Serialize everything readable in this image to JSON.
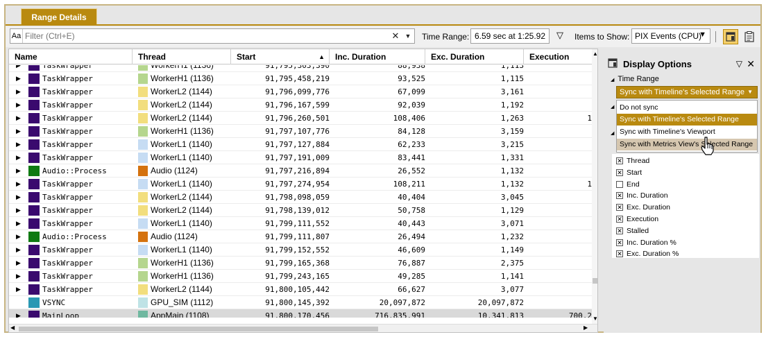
{
  "tab": {
    "label": "Range Details"
  },
  "toolbar": {
    "aa_label": "Aa",
    "filter_placeholder": "Filter (Ctrl+E)",
    "time_range_label": "Time Range:",
    "time_range_value": "6.59 sec at 1:25.92",
    "items_label": "Items to Show:",
    "items_value": "PIX Events (CPU)"
  },
  "grid": {
    "columns": [
      "Name",
      "Thread",
      "Start",
      "Inc. Duration",
      "Exc. Duration",
      "Execution"
    ],
    "rows": [
      {
        "name": "TaskWrapper",
        "name_color": "#3a0a6e",
        "thread": "WorkerH1 (1136)",
        "thread_color": "#b5d68e",
        "start": "91,795,303,390",
        "inc": "88,938",
        "exc": "1,113",
        "exe": ""
      },
      {
        "name": "TaskWrapper",
        "name_color": "#3a0a6e",
        "thread": "WorkerH1 (1136)",
        "thread_color": "#b5d68e",
        "start": "91,795,458,219",
        "inc": "93,525",
        "exc": "1,115",
        "exe": ""
      },
      {
        "name": "TaskWrapper",
        "name_color": "#3a0a6e",
        "thread": "WorkerL2 (1144)",
        "thread_color": "#f2de7e",
        "start": "91,796,099,776",
        "inc": "67,099",
        "exc": "3,161",
        "exe": ""
      },
      {
        "name": "TaskWrapper",
        "name_color": "#3a0a6e",
        "thread": "WorkerL2 (1144)",
        "thread_color": "#f2de7e",
        "start": "91,796,167,599",
        "inc": "92,039",
        "exc": "1,192",
        "exe": ""
      },
      {
        "name": "TaskWrapper",
        "name_color": "#3a0a6e",
        "thread": "WorkerL2 (1144)",
        "thread_color": "#f2de7e",
        "start": "91,796,260,501",
        "inc": "108,406",
        "exc": "1,263",
        "exe": "1"
      },
      {
        "name": "TaskWrapper",
        "name_color": "#3a0a6e",
        "thread": "WorkerH1 (1136)",
        "thread_color": "#b5d68e",
        "start": "91,797,107,776",
        "inc": "84,128",
        "exc": "3,159",
        "exe": ""
      },
      {
        "name": "TaskWrapper",
        "name_color": "#3a0a6e",
        "thread": "WorkerL1 (1140)",
        "thread_color": "#c6dcf3",
        "start": "91,797,127,884",
        "inc": "62,233",
        "exc": "3,215",
        "exe": ""
      },
      {
        "name": "TaskWrapper",
        "name_color": "#3a0a6e",
        "thread": "WorkerL1 (1140)",
        "thread_color": "#c6dcf3",
        "start": "91,797,191,009",
        "inc": "83,441",
        "exc": "1,331",
        "exe": ""
      },
      {
        "name": "Audio::Process",
        "name_color": "#0f7a12",
        "thread": "Audio (1124)",
        "thread_color": "#d4720f",
        "start": "91,797,216,894",
        "inc": "26,552",
        "exc": "1,132",
        "exe": ""
      },
      {
        "name": "TaskWrapper",
        "name_color": "#3a0a6e",
        "thread": "WorkerL1 (1140)",
        "thread_color": "#c6dcf3",
        "start": "91,797,274,954",
        "inc": "108,211",
        "exc": "1,132",
        "exe": "1"
      },
      {
        "name": "TaskWrapper",
        "name_color": "#3a0a6e",
        "thread": "WorkerL2 (1144)",
        "thread_color": "#f2de7e",
        "start": "91,798,098,059",
        "inc": "40,404",
        "exc": "3,045",
        "exe": ""
      },
      {
        "name": "TaskWrapper",
        "name_color": "#3a0a6e",
        "thread": "WorkerL2 (1144)",
        "thread_color": "#f2de7e",
        "start": "91,798,139,012",
        "inc": "50,758",
        "exc": "1,129",
        "exe": ""
      },
      {
        "name": "TaskWrapper",
        "name_color": "#3a0a6e",
        "thread": "WorkerL1 (1140)",
        "thread_color": "#c6dcf3",
        "start": "91,799,111,552",
        "inc": "40,443",
        "exc": "3,071",
        "exe": ""
      },
      {
        "name": "Audio::Process",
        "name_color": "#0f7a12",
        "thread": "Audio (1124)",
        "thread_color": "#d4720f",
        "start": "91,799,111,807",
        "inc": "26,494",
        "exc": "1,232",
        "exe": ""
      },
      {
        "name": "TaskWrapper",
        "name_color": "#3a0a6e",
        "thread": "WorkerL1 (1140)",
        "thread_color": "#c6dcf3",
        "start": "91,799,152,552",
        "inc": "46,609",
        "exc": "1,149",
        "exe": ""
      },
      {
        "name": "TaskWrapper",
        "name_color": "#3a0a6e",
        "thread": "WorkerH1 (1136)",
        "thread_color": "#b5d68e",
        "start": "91,799,165,368",
        "inc": "76,887",
        "exc": "2,375",
        "exe": ""
      },
      {
        "name": "TaskWrapper",
        "name_color": "#3a0a6e",
        "thread": "WorkerH1 (1136)",
        "thread_color": "#b5d68e",
        "start": "91,799,243,165",
        "inc": "49,285",
        "exc": "1,141",
        "exe": ""
      },
      {
        "name": "TaskWrapper",
        "name_color": "#3a0a6e",
        "thread": "WorkerL2 (1144)",
        "thread_color": "#f2de7e",
        "start": "91,800,105,442",
        "inc": "66,627",
        "exc": "3,077",
        "exe": ""
      },
      {
        "name": "VSYNC",
        "name_color": "#2a98b3",
        "thread": "GPU_SIM (1112)",
        "thread_color": "#bfe3e6",
        "start": "91,800,145,392",
        "inc": "20,097,872",
        "exc": "20,097,872",
        "exe": "",
        "noexpand": true
      },
      {
        "name": "MainLoop",
        "name_color": "#3a0a6e",
        "thread": "AppMain (1108)",
        "thread_color": "#6fb8a0",
        "start": "91,800,170,456",
        "inc": "716,835,991",
        "exc": "10,341,813",
        "exe": "700,2",
        "selected": true
      }
    ]
  },
  "panel": {
    "title": "Display Options",
    "section_time_range": "Time Range",
    "sync_selected": "Sync with Timeline's Selected Range",
    "options": [
      "Do not sync",
      "Sync with Timeline's Selected Range",
      "Sync with Timeline's Viewport",
      "Sync with Metrics View's Selected Range"
    ],
    "checks": [
      {
        "label": "Thread",
        "checked": true
      },
      {
        "label": "Start",
        "checked": true
      },
      {
        "label": "End",
        "checked": false
      },
      {
        "label": "Inc. Duration",
        "checked": true
      },
      {
        "label": "Exc. Duration",
        "checked": true
      },
      {
        "label": "Execution",
        "checked": true
      },
      {
        "label": "Stalled",
        "checked": true
      },
      {
        "label": "Inc. Duration %",
        "checked": true
      },
      {
        "label": "Exc. Duration %",
        "checked": true
      }
    ]
  },
  "colors": {
    "accent": "#b98a10",
    "border": "#c7b482"
  }
}
